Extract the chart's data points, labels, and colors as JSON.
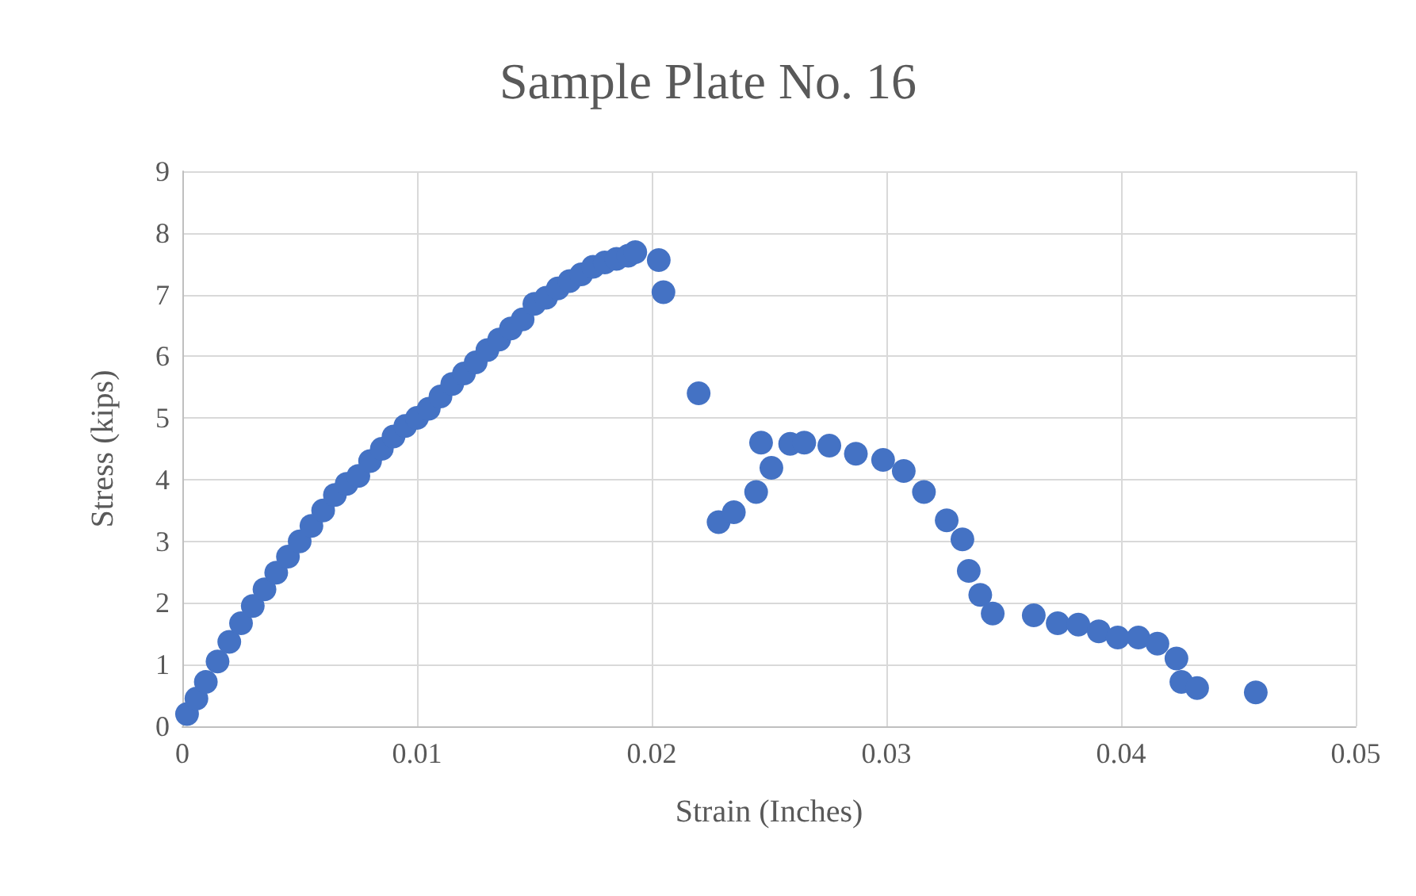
{
  "chart_data": {
    "type": "scatter",
    "title": "Sample Plate No. 16",
    "xlabel": "Strain (Inches)",
    "ylabel": "Stress (kips)",
    "x": [
      0.0002,
      0.0006,
      0.001,
      0.0015,
      0.002,
      0.0025,
      0.003,
      0.0035,
      0.004,
      0.0045,
      0.005,
      0.0055,
      0.006,
      0.0065,
      0.007,
      0.0075,
      0.008,
      0.0085,
      0.009,
      0.0095,
      0.01,
      0.0105,
      0.011,
      0.0115,
      0.012,
      0.0125,
      0.013,
      0.0135,
      0.014,
      0.0145,
      0.015,
      0.0155,
      0.016,
      0.0165,
      0.017,
      0.0175,
      0.018,
      0.0185,
      0.019,
      0.0193,
      0.0203,
      0.0205,
      0.022,
      0.02285,
      0.0235,
      0.02445,
      0.02466,
      0.0251,
      0.0259,
      0.0265,
      0.02757,
      0.0287,
      0.02986,
      0.03074,
      0.0316,
      0.03257,
      0.03324,
      0.03351,
      0.034,
      0.03453,
      0.03628,
      0.0373,
      0.03818,
      0.03905,
      0.03986,
      0.04074,
      0.04155,
      0.04236,
      0.04257,
      0.04324,
      0.04574
    ],
    "values": [
      0.2,
      0.45,
      0.72,
      1.05,
      1.37,
      1.67,
      1.95,
      2.22,
      2.49,
      2.75,
      3.0,
      3.25,
      3.5,
      3.75,
      3.93,
      4.06,
      4.3,
      4.5,
      4.7,
      4.87,
      5.0,
      5.15,
      5.35,
      5.55,
      5.72,
      5.9,
      6.1,
      6.27,
      6.45,
      6.6,
      6.85,
      6.95,
      7.1,
      7.22,
      7.33,
      7.45,
      7.52,
      7.58,
      7.63,
      7.69,
      7.56,
      7.04,
      5.4,
      3.31,
      3.47,
      3.8,
      4.6,
      4.19,
      4.58,
      4.6,
      4.55,
      4.42,
      4.32,
      4.14,
      3.8,
      3.34,
      3.03,
      2.52,
      2.13,
      1.83,
      1.8,
      1.67,
      1.65,
      1.54,
      1.44,
      1.44,
      1.34,
      1.1,
      0.72,
      0.62,
      0.55
    ],
    "color": "#4472c4",
    "marker": "circle",
    "grid": true,
    "xlim": [
      0,
      0.05
    ],
    "xticks": [
      0,
      0.01,
      0.02,
      0.03,
      0.04,
      0.05
    ],
    "ylim": [
      0,
      9
    ],
    "yticks": [
      0,
      1,
      2,
      3,
      4,
      5,
      6,
      7,
      8,
      9
    ]
  }
}
